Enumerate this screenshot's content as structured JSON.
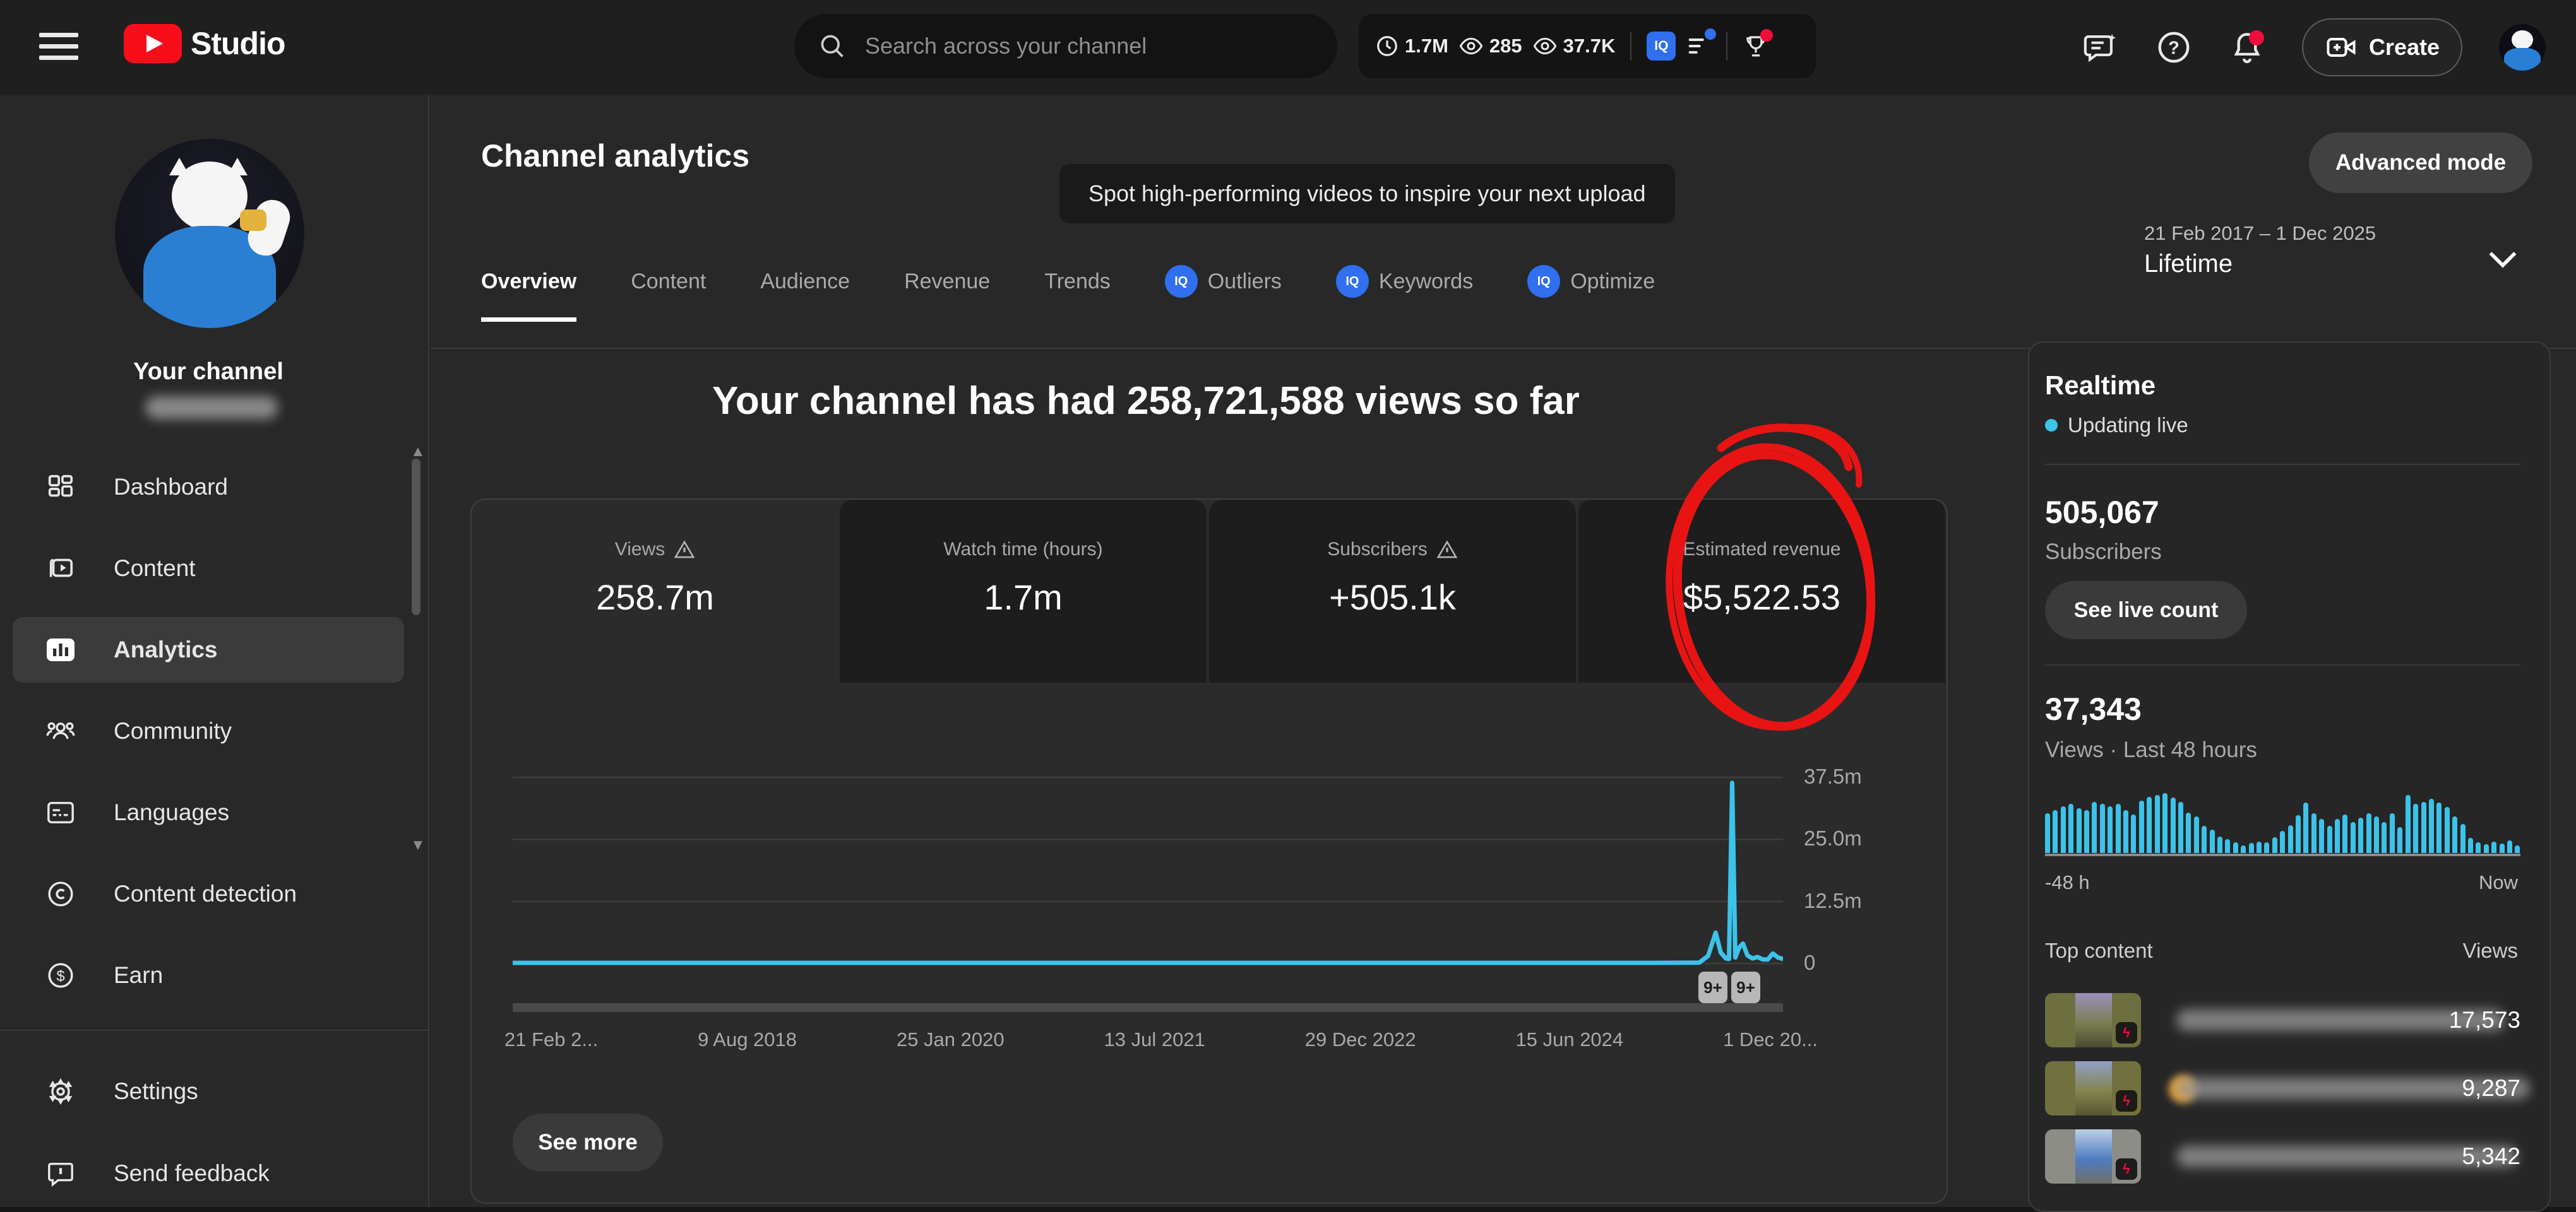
{
  "topbar": {
    "logo_text": "Studio",
    "search_placeholder": "Search across your channel",
    "stats": [
      {
        "icon": "clock-icon",
        "value": "1.7M"
      },
      {
        "icon": "eye-icon",
        "value": "285"
      },
      {
        "icon": "eye-icon",
        "value": "37.7K"
      }
    ],
    "vidiq_badge": "IQ",
    "create_label": "Create"
  },
  "sidebar": {
    "your_channel": "Your channel",
    "items": [
      {
        "label": "Dashboard",
        "icon": "dashboard-icon",
        "active": false
      },
      {
        "label": "Content",
        "icon": "content-icon",
        "active": false
      },
      {
        "label": "Analytics",
        "icon": "analytics-icon",
        "active": true
      },
      {
        "label": "Community",
        "icon": "community-icon",
        "active": false
      },
      {
        "label": "Languages",
        "icon": "languages-icon",
        "active": false
      },
      {
        "label": "Content detection",
        "icon": "copyright-icon",
        "active": false
      },
      {
        "label": "Earn",
        "icon": "earn-icon",
        "active": false
      }
    ],
    "footer_items": [
      {
        "label": "Settings",
        "icon": "gear-icon"
      },
      {
        "label": "Send feedback",
        "icon": "feedback-icon"
      }
    ]
  },
  "header": {
    "title": "Channel analytics",
    "tooltip": "Spot high-performing videos to inspire your next upload",
    "tabs": [
      {
        "label": "Overview",
        "active": true,
        "vidiq": false
      },
      {
        "label": "Content",
        "active": false,
        "vidiq": false
      },
      {
        "label": "Audience",
        "active": false,
        "vidiq": false
      },
      {
        "label": "Revenue",
        "active": false,
        "vidiq": false
      },
      {
        "label": "Trends",
        "active": false,
        "vidiq": false
      },
      {
        "label": "Outliers",
        "active": false,
        "vidiq": true
      },
      {
        "label": "Keywords",
        "active": false,
        "vidiq": true
      },
      {
        "label": "Optimize",
        "active": false,
        "vidiq": true
      }
    ],
    "advanced_mode": "Advanced mode",
    "date_range": "21 Feb 2017 – 1 Dec 2025",
    "date_label": "Lifetime"
  },
  "headline": "Your channel has had 258,721,588 views so far",
  "metrics": [
    {
      "label": "Views",
      "value": "258.7m",
      "warning": true,
      "active": true
    },
    {
      "label": "Watch time (hours)",
      "value": "1.7m",
      "warning": false,
      "active": false
    },
    {
      "label": "Subscribers",
      "value": "+505.1k",
      "warning": true,
      "active": false
    },
    {
      "label": "Estimated revenue",
      "value": "$5,522.53",
      "warning": false,
      "active": false
    }
  ],
  "see_more_label": "See more",
  "chart_data": [
    {
      "type": "line",
      "title": "Channel views over lifetime",
      "xlabel": "",
      "ylabel": "Views",
      "x_ticks": [
        "21 Feb 2...",
        "9 Aug 2018",
        "25 Jan 2020",
        "13 Jul 2021",
        "29 Dec 2022",
        "15 Jun 2024",
        "1 Dec 20..."
      ],
      "y_ticks": [
        "0",
        "12.5m",
        "25.0m",
        "37.5m"
      ],
      "ylim": [
        0,
        41.5
      ],
      "grid": true,
      "annotations": [
        "9+",
        "9+"
      ],
      "points": [
        [
          0.0,
          0.12
        ],
        [
          0.4,
          0.12
        ],
        [
          0.8,
          0.12
        ],
        [
          0.9,
          0.12
        ],
        [
          0.934,
          0.15
        ],
        [
          0.941,
          1.5
        ],
        [
          0.947,
          6.2
        ],
        [
          0.951,
          2.2
        ],
        [
          0.955,
          1.0
        ],
        [
          0.9575,
          0.9
        ],
        [
          0.96,
          36.4
        ],
        [
          0.9625,
          1.2
        ],
        [
          0.9655,
          3.2
        ],
        [
          0.9685,
          4.0
        ],
        [
          0.972,
          1.6
        ],
        [
          0.976,
          1.0
        ],
        [
          0.98,
          1.3
        ],
        [
          0.984,
          0.8
        ],
        [
          0.988,
          0.8
        ],
        [
          0.992,
          2.0
        ],
        [
          0.996,
          1.2
        ],
        [
          1.0,
          0.9
        ]
      ]
    },
    {
      "type": "bar",
      "title": "Views · Last 48 hours",
      "xlabel_left": "-48 h",
      "xlabel_right": "Now",
      "unit": "relative height %",
      "values": [
        65,
        70,
        76,
        80,
        73,
        70,
        84,
        80,
        76,
        80,
        70,
        63,
        86,
        92,
        95,
        98,
        91,
        84,
        66,
        60,
        44,
        38,
        27,
        23,
        18,
        12,
        16,
        19,
        18,
        26,
        36,
        45,
        62,
        82,
        65,
        56,
        44,
        56,
        63,
        51,
        58,
        65,
        60,
        51,
        65,
        42,
        95,
        80,
        84,
        89,
        82,
        75,
        60,
        47,
        25,
        18,
        14,
        19,
        15,
        21,
        12
      ]
    }
  ],
  "realtime": {
    "title": "Realtime",
    "updating": "Updating live",
    "subscribers_value": "505,067",
    "subscribers_label": "Subscribers",
    "live_count_label": "See live count",
    "views_value": "37,343",
    "views_label": "Views · Last 48 hours",
    "axis_left": "-48 h",
    "axis_right": "Now"
  },
  "top_content": {
    "header": "Top content",
    "views_header": "Views",
    "rows": [
      {
        "views": "17,573"
      },
      {
        "views": "9,287"
      },
      {
        "views": "5,342"
      }
    ]
  },
  "colors": {
    "accent_cyan": "#3bc3ea",
    "vidiq_blue": "#2f6ff0",
    "marker_red": "#e81414",
    "badge_grey": "#b7b7b7",
    "card_bg": "#2b2b2b",
    "page_bg": "#282828",
    "topbar_bg": "#1f1f1f"
  }
}
